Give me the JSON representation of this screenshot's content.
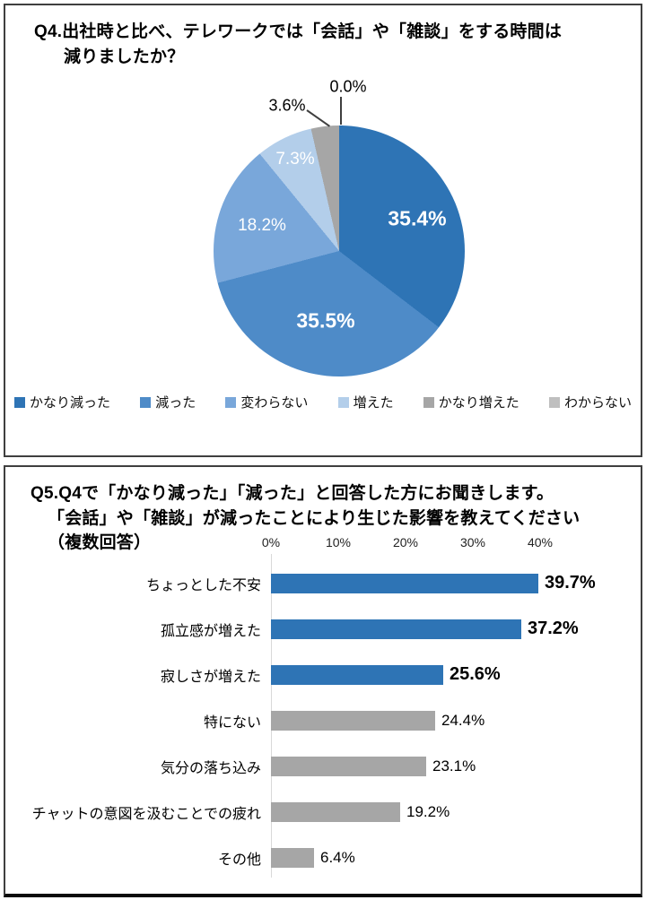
{
  "q4": {
    "title_line1": "Q4.出社時と比べ、テレワークでは「会話」や「雑談」をする時間は",
    "title_line2": "減りましたか？"
  },
  "q5": {
    "title_line1": "Q5.Q4で「かなり減った」「減った」と回答した方にお聞きします。",
    "title_line2": "「会話」や「雑談」が減ったことにより生じた影響を教えてください",
    "title_line3": "（複数回答）"
  },
  "chart_data": [
    {
      "type": "pie",
      "title": "Q4.出社時と比べ、テレワークでは「会話」や「雑談」をする時間は減りましたか？",
      "labels": [
        "かなり減った",
        "減った",
        "変わらない",
        "増えた",
        "かなり増えた",
        "わからない"
      ],
      "values": [
        35.4,
        35.5,
        18.2,
        7.3,
        3.6,
        0.0
      ],
      "value_labels": [
        "35.4%",
        "35.5%",
        "18.2%",
        "7.3%",
        "3.6%",
        "0.0%"
      ],
      "colors": [
        "#2e74b5",
        "#4e8bc8",
        "#79a7da",
        "#b3ceea",
        "#a6a6a6",
        "#bfbfbf"
      ],
      "start_angle_deg": 0,
      "direction": "clockwise",
      "legend_position": "bottom"
    },
    {
      "type": "bar",
      "orientation": "horizontal",
      "title": "Q5.Q4で「かなり減った」「減った」と回答した方にお聞きします。「会話」や「雑談」が減ったことにより生じた影響を教えてください（複数回答）",
      "categories": [
        "ちょっとした不安",
        "孤立感が増えた",
        "寂しさが増えた",
        "特にない",
        "気分の落ち込み",
        "チャットの意図を汲むことでの疲れ",
        "その他"
      ],
      "values": [
        39.7,
        37.2,
        25.6,
        24.4,
        23.1,
        19.2,
        6.4
      ],
      "value_labels": [
        "39.7%",
        "37.2%",
        "25.6%",
        "24.4%",
        "23.1%",
        "19.2%",
        "6.4%"
      ],
      "bar_colors": [
        "#2e74b5",
        "#2e74b5",
        "#2e74b5",
        "#a6a6a6",
        "#a6a6a6",
        "#a6a6a6",
        "#a6a6a6"
      ],
      "emphasis": [
        true,
        true,
        true,
        false,
        false,
        false,
        false
      ],
      "xlim": [
        0,
        40
      ],
      "xticks": [
        "0%",
        "10%",
        "20%",
        "30%",
        "40%"
      ],
      "grid": false
    }
  ]
}
